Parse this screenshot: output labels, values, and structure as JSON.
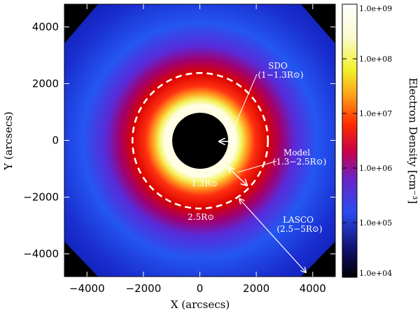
{
  "chart_data": {
    "type": "heatmap",
    "xlabel": "X (arcsecs)",
    "ylabel": "Y (arcsecs)",
    "xlim": [
      -4800,
      4800
    ],
    "ylim": [
      -4800,
      4800
    ],
    "x_ticks": [
      -4000,
      -2000,
      0,
      2000,
      4000
    ],
    "x_tick_labels": [
      "−4000",
      "−2000",
      "0",
      "2000",
      "4000"
    ],
    "y_ticks": [
      -4000,
      -2000,
      0,
      2000,
      4000
    ],
    "y_tick_labels": [
      "−4000",
      "−2000",
      "0",
      "2000",
      "4000"
    ],
    "colorbar": {
      "label": "Electron Density [cm⁻³]",
      "scale": "log",
      "range": [
        10000,
        1000000000
      ],
      "tick_values": [
        10000,
        100000,
        1000000,
        10000000,
        100000000,
        1000000000
      ],
      "tick_labels": [
        "1.0e+04",
        "1.0e+05",
        "1.0e+06",
        "1.0e+07",
        "1.0e+08",
        "1.0e+09"
      ]
    },
    "solar_radius_arcsec": 960,
    "circles": [
      {
        "name": "inner-dashed-circle",
        "radius_rsun": 1.3,
        "label": "1.3R⊙"
      },
      {
        "name": "outer-dashed-circle",
        "radius_rsun": 2.5,
        "label": "2.5R⊙"
      }
    ],
    "annotations": [
      {
        "name": "sdo",
        "line1": "SDO",
        "line2": "(1−1.3R⊙)"
      },
      {
        "name": "model",
        "line1": "Model",
        "line2": "(1.3−2.5R⊙)"
      },
      {
        "name": "lasco",
        "line1": "LASCO",
        "line2": "(2.5−5R⊙)"
      }
    ]
  }
}
